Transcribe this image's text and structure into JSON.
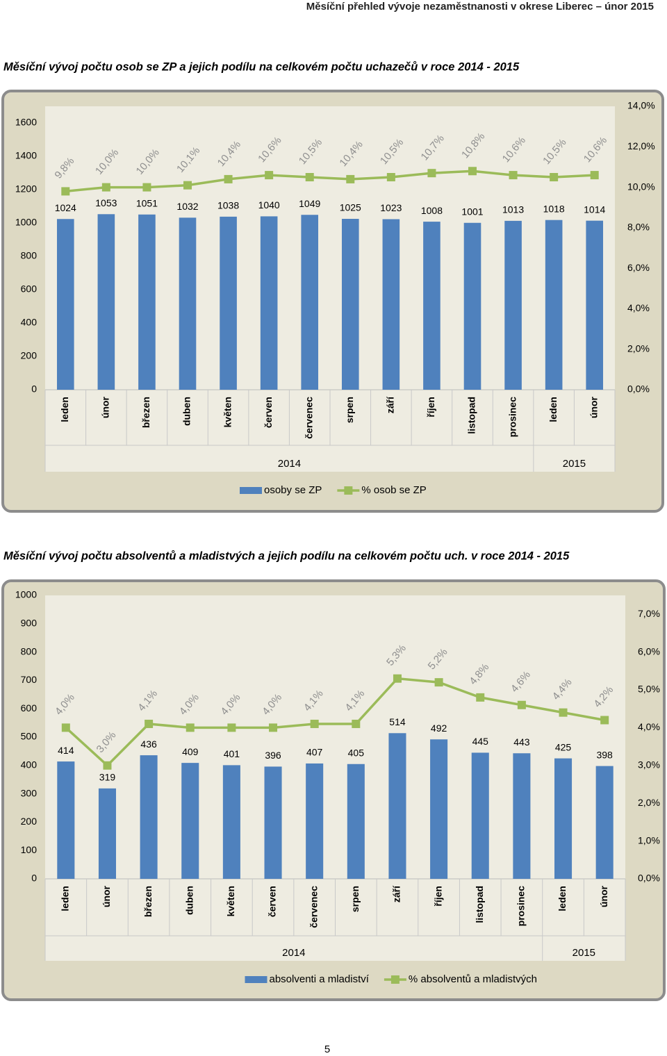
{
  "header": "Měsíční přehled vývoje nezaměstnanosti v okrese Liberec – únor 2015",
  "chart_data": [
    {
      "type": "bar_line",
      "title": "Měsíční vývoj počtu osob se ZP a jejich podílu na celkovém počtu uchazečů v roce 2014 - 2015",
      "category_groups": [
        {
          "name": "2014",
          "categories": [
            "leden",
            "únor",
            "březen",
            "duben",
            "květen",
            "červen",
            "červenec",
            "srpen",
            "září",
            "říjen",
            "listopad",
            "prosinec"
          ]
        },
        {
          "name": "2015",
          "categories": [
            "leden",
            "únor"
          ]
        }
      ],
      "series": [
        {
          "name": "osoby se ZP",
          "type": "bar",
          "color": "#4f81bd",
          "values": [
            1024,
            1053,
            1051,
            1032,
            1038,
            1040,
            1049,
            1025,
            1023,
            1008,
            1001,
            1013,
            1018,
            1014
          ]
        },
        {
          "name": "% osob se ZP",
          "type": "line",
          "axis": "y2",
          "color": "#9bbb59",
          "values": [
            9.8,
            10.0,
            10.0,
            10.1,
            10.4,
            10.6,
            10.5,
            10.4,
            10.5,
            10.7,
            10.8,
            10.6,
            10.5,
            10.6
          ],
          "value_labels": [
            "9,8%",
            "10,0%",
            "10,0%",
            "10,1%",
            "10,4%",
            "10,6%",
            "10,5%",
            "10,4%",
            "10,5%",
            "10,7%",
            "10,8%",
            "10,6%",
            "10,5%",
            "10,6%"
          ]
        }
      ],
      "ylim": [
        0,
        1700
      ],
      "yticks": [
        0,
        200,
        400,
        600,
        800,
        1000,
        1200,
        1400,
        1600
      ],
      "y2lim": [
        0,
        14
      ],
      "y2ticks": [
        {
          "value": 0,
          "label": "0,0%"
        },
        {
          "value": 2,
          "label": "2,0%"
        },
        {
          "value": 4,
          "label": "4,0%"
        },
        {
          "value": 6,
          "label": "6,0%"
        },
        {
          "value": 8,
          "label": "8,0%"
        },
        {
          "value": 10,
          "label": "10,0%"
        },
        {
          "value": 12,
          "label": "12,0%"
        },
        {
          "value": 14,
          "label": "14,0%"
        }
      ],
      "legend": "bottom"
    },
    {
      "type": "bar_line",
      "title": "Měsíční vývoj počtu absolventů a mladistvých a jejich podílu na celkovém počtu uch. v roce 2014 - 2015",
      "category_groups": [
        {
          "name": "2014",
          "categories": [
            "leden",
            "únor",
            "březen",
            "duben",
            "květen",
            "červen",
            "červenec",
            "srpen",
            "září",
            "říjen",
            "listopad",
            "prosinec"
          ]
        },
        {
          "name": "2015",
          "categories": [
            "leden",
            "únor"
          ]
        }
      ],
      "series": [
        {
          "name": "absolventi a mladiství",
          "type": "bar",
          "color": "#4f81bd",
          "values": [
            414,
            319,
            436,
            409,
            401,
            396,
            407,
            405,
            514,
            492,
            445,
            443,
            425,
            398
          ]
        },
        {
          "name": "% absolventů a mladistvých",
          "type": "line",
          "axis": "y2",
          "color": "#9bbb59",
          "values": [
            4.0,
            3.0,
            4.1,
            4.0,
            4.0,
            4.0,
            4.1,
            4.1,
            5.3,
            5.2,
            4.8,
            4.6,
            4.4,
            4.2
          ],
          "value_labels": [
            "4,0%",
            "3,0%",
            "4,1%",
            "4,0%",
            "4,0%",
            "4,0%",
            "4,1%",
            "4,1%",
            "5,3%",
            "5,2%",
            "4,8%",
            "4,6%",
            "4,4%",
            "4,2%"
          ]
        }
      ],
      "ylim": [
        0,
        1000
      ],
      "yticks": [
        0,
        100,
        200,
        300,
        400,
        500,
        600,
        700,
        800,
        900,
        1000
      ],
      "y2lim": [
        0,
        7.5
      ],
      "y2ticks": [
        {
          "value": 0,
          "label": "0,0%"
        },
        {
          "value": 1,
          "label": "1,0%"
        },
        {
          "value": 2,
          "label": "2,0%"
        },
        {
          "value": 3,
          "label": "3,0%"
        },
        {
          "value": 4,
          "label": "4,0%"
        },
        {
          "value": 5,
          "label": "5,0%"
        },
        {
          "value": 6,
          "label": "6,0%"
        },
        {
          "value": 7,
          "label": "7,0%"
        }
      ],
      "legend": "bottom"
    }
  ],
  "page_number": "5"
}
